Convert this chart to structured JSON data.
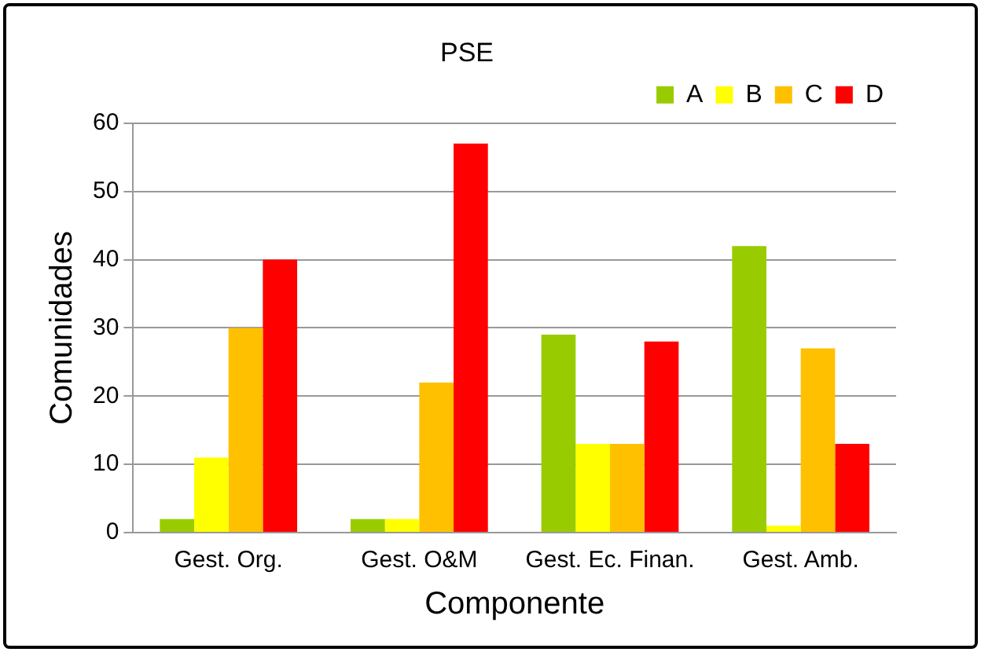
{
  "chart_data": {
    "type": "bar",
    "title": "PSE",
    "xlabel": "Componente",
    "ylabel": "Comunidades",
    "categories": [
      "Gest. Org.",
      "Gest. O&M",
      "Gest. Ec. Finan.",
      "Gest. Amb."
    ],
    "series": [
      {
        "name": "A",
        "color": "#99cc00",
        "values": [
          2,
          2,
          29,
          42
        ]
      },
      {
        "name": "B",
        "color": "#ffff00",
        "values": [
          11,
          2,
          13,
          1
        ]
      },
      {
        "name": "C",
        "color": "#ffc000",
        "values": [
          30,
          22,
          13,
          27
        ]
      },
      {
        "name": "D",
        "color": "#ff0000",
        "values": [
          40,
          57,
          28,
          13
        ]
      }
    ],
    "ylim": [
      0,
      60
    ],
    "yticks": [
      0,
      10,
      20,
      30,
      40,
      50,
      60
    ],
    "grid": "y",
    "legend": "top right"
  }
}
